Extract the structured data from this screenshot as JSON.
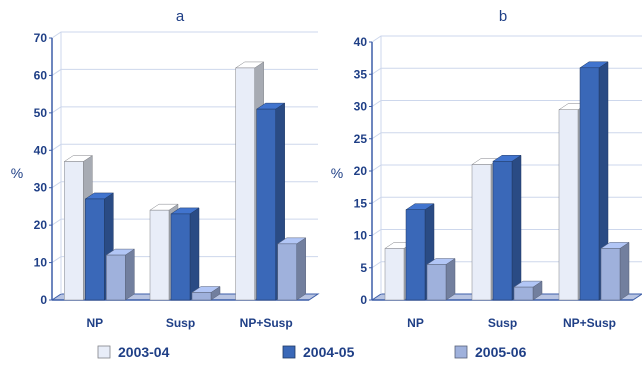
{
  "colors": {
    "text": "#1f3f86",
    "axis": "#3d5ea8",
    "grid": "#cdd7ec",
    "floor": "#b8c4e2",
    "series_front": [
      "#e8edf8",
      "#3a68b8",
      "#9fb1dc"
    ]
  },
  "legend": {
    "placement": "bottom",
    "items": [
      {
        "label": "2003-04"
      },
      {
        "label": "2004-05"
      },
      {
        "label": "2005-06"
      }
    ]
  },
  "chart_data": [
    {
      "type": "bar",
      "style": "3d-clustered",
      "title": "a",
      "xlabel": "",
      "ylabel": "%",
      "ylim": [
        0,
        70
      ],
      "ytick_labels": [
        "0",
        "10",
        "20",
        "30",
        "40",
        "50",
        "60",
        "70"
      ],
      "grid": true,
      "categories": [
        "NP",
        "Susp",
        "NP+Susp"
      ],
      "series": [
        {
          "name": "2003-04",
          "values": [
            37,
            24,
            62
          ]
        },
        {
          "name": "2004-05",
          "values": [
            27,
            23,
            51
          ]
        },
        {
          "name": "2005-06",
          "values": [
            12,
            2,
            15
          ]
        }
      ]
    },
    {
      "type": "bar",
      "style": "3d-clustered",
      "title": "b",
      "xlabel": "",
      "ylabel": "%",
      "ylim": [
        0,
        40
      ],
      "ytick_labels": [
        "0",
        "5",
        "10",
        "15",
        "20",
        "25",
        "30",
        "35",
        "40"
      ],
      "grid": true,
      "categories": [
        "NP",
        "Susp",
        "NP+Susp"
      ],
      "series": [
        {
          "name": "2003-04",
          "values": [
            8,
            21,
            29.5
          ]
        },
        {
          "name": "2004-05",
          "values": [
            14,
            21.5,
            36
          ]
        },
        {
          "name": "2005-06",
          "values": [
            5.5,
            2,
            8
          ]
        }
      ]
    }
  ]
}
